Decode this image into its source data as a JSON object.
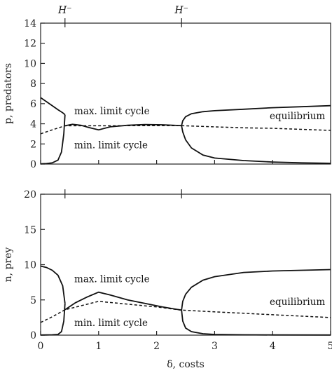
{
  "chart_data": [
    {
      "type": "line",
      "ylabel": "p, predators",
      "xlim": [
        0,
        5
      ],
      "ylim": [
        0,
        14
      ],
      "xticks": [
        0,
        1,
        2,
        3,
        4,
        5
      ],
      "yticks": [
        0,
        2,
        4,
        6,
        8,
        10,
        12,
        14
      ],
      "top_markers": [
        {
          "x": 0.42,
          "label": "H⁻"
        },
        {
          "x": 2.43,
          "label": "H⁻"
        }
      ],
      "annotations": [
        {
          "text": "max. limit cycle",
          "x": 0.58,
          "y": 5.3
        },
        {
          "text": "min. limit cycle",
          "x": 0.58,
          "y": 1.9
        },
        {
          "text": "equilibrium",
          "x": 3.95,
          "y": 4.8
        }
      ],
      "series": [
        {
          "style": "solid",
          "x": [
            0,
            0.1,
            0.2,
            0.3,
            0.38,
            0.42
          ],
          "y": [
            6.6,
            6.2,
            5.8,
            5.4,
            5.1,
            4.9
          ]
        },
        {
          "style": "solid",
          "x": [
            0,
            0.1,
            0.2,
            0.3,
            0.36,
            0.4,
            0.42
          ],
          "y": [
            0.02,
            0.05,
            0.12,
            0.4,
            1.2,
            3.0,
            4.9
          ]
        },
        {
          "style": "solid",
          "x": [
            0.42,
            0.55,
            0.7,
            0.85,
            1.0,
            1.2,
            1.5,
            1.8,
            2.1,
            2.43
          ],
          "y": [
            3.8,
            3.95,
            3.85,
            3.6,
            3.4,
            3.7,
            3.85,
            3.92,
            3.9,
            3.82
          ]
        },
        {
          "style": "solid",
          "x": [
            2.43,
            2.45,
            2.5,
            2.6,
            2.8,
            3.0,
            3.5,
            4.0,
            4.5,
            5.0
          ],
          "y": [
            3.82,
            4.3,
            4.7,
            5.0,
            5.2,
            5.3,
            5.45,
            5.6,
            5.7,
            5.8
          ]
        },
        {
          "style": "solid",
          "x": [
            2.43,
            2.45,
            2.5,
            2.6,
            2.8,
            3.0,
            3.5,
            4.0,
            4.5,
            5.0
          ],
          "y": [
            3.82,
            3.2,
            2.4,
            1.6,
            0.9,
            0.6,
            0.35,
            0.2,
            0.12,
            0.08
          ]
        },
        {
          "style": "dashed",
          "x": [
            0,
            0.2,
            0.42,
            2.43,
            3.0,
            3.5,
            4.0,
            4.5,
            5.0
          ],
          "y": [
            3.0,
            3.4,
            3.8,
            3.82,
            3.7,
            3.6,
            3.55,
            3.45,
            3.35
          ]
        }
      ]
    },
    {
      "type": "line",
      "xlabel": "δ, costs",
      "ylabel": "n, prey",
      "xlim": [
        0,
        5
      ],
      "ylim": [
        0,
        20
      ],
      "xticks": [
        0,
        1,
        2,
        3,
        4,
        5
      ],
      "yticks": [
        0,
        5,
        10,
        15,
        20
      ],
      "top_markers": [
        {
          "x": 0.42,
          "label": ""
        },
        {
          "x": 2.43,
          "label": ""
        }
      ],
      "annotations": [
        {
          "text": "max. limit cycle",
          "x": 0.58,
          "y": 8.0
        },
        {
          "text": "min. limit cycle",
          "x": 0.58,
          "y": 1.8
        },
        {
          "text": "equilibrium",
          "x": 3.95,
          "y": 4.8
        }
      ],
      "series": [
        {
          "style": "solid",
          "x": [
            0,
            0.1,
            0.2,
            0.3,
            0.38,
            0.42
          ],
          "y": [
            9.8,
            9.6,
            9.2,
            8.5,
            7.0,
            4.5
          ]
        },
        {
          "style": "solid",
          "x": [
            0,
            0.1,
            0.2,
            0.3,
            0.36,
            0.4,
            0.42
          ],
          "y": [
            0.02,
            0.03,
            0.05,
            0.1,
            0.5,
            2.0,
            4.5
          ]
        },
        {
          "style": "solid",
          "x": [
            0.42,
            0.6,
            0.8,
            1.0,
            1.2,
            1.5,
            1.8,
            2.1,
            2.43
          ],
          "y": [
            3.6,
            4.6,
            5.4,
            6.1,
            5.7,
            5.0,
            4.5,
            4.0,
            3.55
          ]
        },
        {
          "style": "solid",
          "x": [
            2.43,
            2.45,
            2.5,
            2.6,
            2.8,
            3.0,
            3.5,
            4.0,
            4.5,
            5.0
          ],
          "y": [
            3.55,
            4.8,
            5.8,
            6.8,
            7.8,
            8.3,
            8.9,
            9.1,
            9.2,
            9.3
          ]
        },
        {
          "style": "solid",
          "x": [
            2.43,
            2.45,
            2.5,
            2.6,
            2.8,
            3.0,
            3.5,
            4.0,
            5.0
          ],
          "y": [
            3.55,
            2.0,
            1.0,
            0.5,
            0.2,
            0.1,
            0.05,
            0.03,
            0.02
          ]
        },
        {
          "style": "dashed",
          "x": [
            0,
            0.2,
            0.42,
            1.0,
            2.0,
            2.43,
            3.0,
            3.5,
            4.0,
            4.5,
            5.0
          ],
          "y": [
            1.8,
            2.6,
            3.6,
            4.8,
            4.0,
            3.55,
            3.3,
            3.1,
            2.9,
            2.7,
            2.5
          ]
        }
      ]
    }
  ]
}
